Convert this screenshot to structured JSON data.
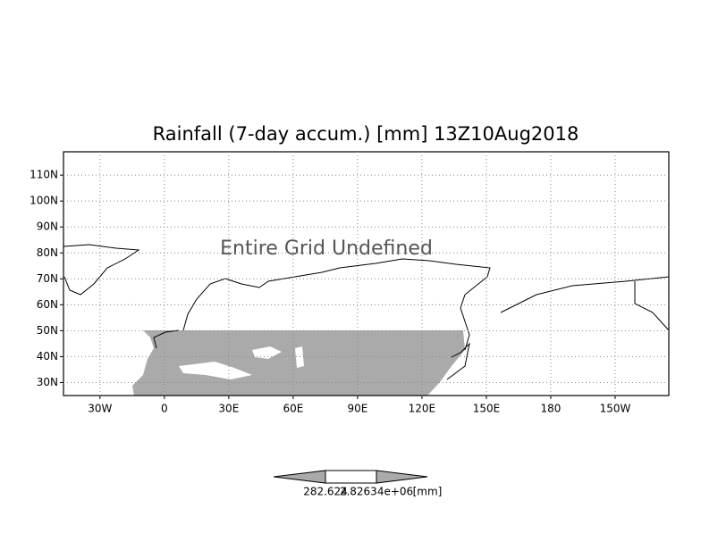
{
  "map": {
    "title": "Rainfall (7-day accum.) [mm] 13Z10Aug2018",
    "message": "Entire Grid Undefined",
    "xlim": [
      -47,
      235
    ],
    "ylim": [
      25,
      119
    ],
    "lon_ticks": [
      {
        "value": -30,
        "label": "30W"
      },
      {
        "value": 0,
        "label": "0"
      },
      {
        "value": 30,
        "label": "30E"
      },
      {
        "value": 60,
        "label": "60E"
      },
      {
        "value": 90,
        "label": "90E"
      },
      {
        "value": 120,
        "label": "120E"
      },
      {
        "value": 150,
        "label": "150E"
      },
      {
        "value": 180,
        "label": "180"
      },
      {
        "value": 210,
        "label": "150W"
      }
    ],
    "lat_ticks": [
      {
        "value": 30,
        "label": "30N"
      },
      {
        "value": 40,
        "label": "40N"
      },
      {
        "value": 50,
        "label": "50N"
      },
      {
        "value": 60,
        "label": "60N"
      },
      {
        "value": 70,
        "label": "70N"
      },
      {
        "value": 80,
        "label": "80N"
      },
      {
        "value": 90,
        "label": "90N"
      },
      {
        "value": 100,
        "label": "100N"
      },
      {
        "value": 110,
        "label": "110N"
      }
    ],
    "colorbar": {
      "labels": [
        "282.624",
        "2.82634e+06",
        "[mm]"
      ]
    }
  }
}
